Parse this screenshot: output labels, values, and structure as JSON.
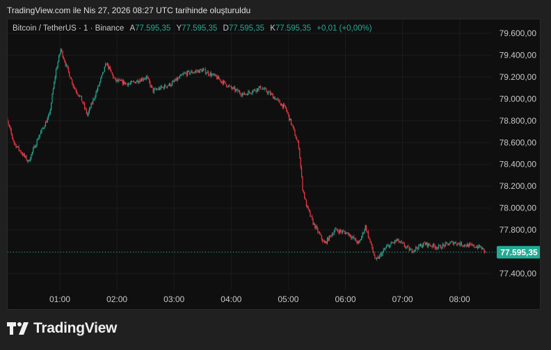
{
  "caption": "TradingView.com ile Nis 27, 2026 08:27 UTC tarihinde oluşturuldu",
  "legend": {
    "symbol": "Bitcoin / TetherUS · 1 · Binance",
    "open_label": "A",
    "open": "77.595,35",
    "high_label": "Y",
    "high": "77.595,35",
    "low_label": "D",
    "low": "77.595,35",
    "close_label": "K",
    "close": "77.595,35",
    "change": "+0,01 (+0,00%)"
  },
  "colors": {
    "up": "#22ab94",
    "down": "#f23645",
    "background": "#0f0f0f"
  },
  "price_axis": [
    "79.600,00",
    "79.400,00",
    "79.200,00",
    "79.000,00",
    "78.800,00",
    "78.600,00",
    "78.400,00",
    "78.200,00",
    "78.000,00",
    "77.800,00",
    "77.600,00",
    "77.400,00"
  ],
  "price_axis_values": [
    79600,
    79400,
    79200,
    79000,
    78800,
    78600,
    78400,
    78200,
    78000,
    77800,
    77600,
    77400
  ],
  "last_price": {
    "label": "77.595,35",
    "value": 77595.35
  },
  "time_axis": [
    "01:00",
    "02:00",
    "03:00",
    "04:00",
    "05:00",
    "06:00",
    "07:00",
    "08:00"
  ],
  "chart_data": {
    "type": "candlestick",
    "interval": "1m",
    "x_unit": "minutes after 00:00 UTC",
    "approx_price_path": [
      [
        5,
        78786
      ],
      [
        12,
        78595
      ],
      [
        27,
        78424
      ],
      [
        38,
        78659
      ],
      [
        49,
        78850
      ],
      [
        56,
        79263
      ],
      [
        61,
        79454
      ],
      [
        67,
        79295
      ],
      [
        75,
        79104
      ],
      [
        82,
        79009
      ],
      [
        89,
        78850
      ],
      [
        100,
        79104
      ],
      [
        109,
        79327
      ],
      [
        118,
        79168
      ],
      [
        133,
        79136
      ],
      [
        151,
        79200
      ],
      [
        158,
        79072
      ],
      [
        177,
        79136
      ],
      [
        191,
        79231
      ],
      [
        210,
        79263
      ],
      [
        224,
        79200
      ],
      [
        239,
        79104
      ],
      [
        253,
        79040
      ],
      [
        271,
        79104
      ],
      [
        282,
        79040
      ],
      [
        297,
        78913
      ],
      [
        304,
        78754
      ],
      [
        311,
        78563
      ],
      [
        315,
        78182
      ],
      [
        319,
        78023
      ],
      [
        326,
        77864
      ],
      [
        338,
        77673
      ],
      [
        349,
        77800
      ],
      [
        363,
        77768
      ],
      [
        374,
        77673
      ],
      [
        381,
        77832
      ],
      [
        392,
        77514
      ],
      [
        403,
        77641
      ],
      [
        414,
        77705
      ],
      [
        429,
        77609
      ],
      [
        443,
        77673
      ],
      [
        458,
        77641
      ],
      [
        473,
        77686
      ],
      [
        487,
        77660
      ],
      [
        502,
        77641
      ],
      [
        507,
        77595
      ]
    ],
    "ylim": [
      77300,
      79700
    ]
  },
  "brand": "TradingView"
}
